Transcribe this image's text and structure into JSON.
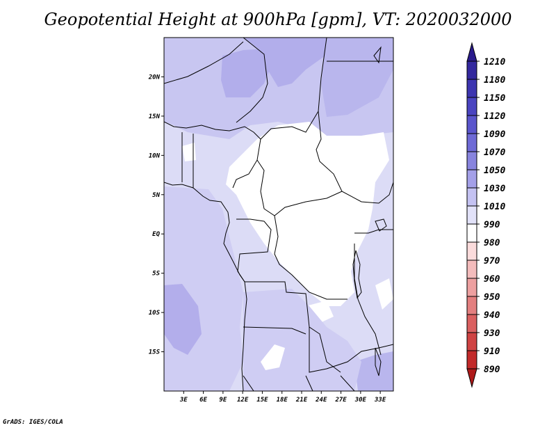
{
  "title": "Geopotential Height at 900hPa [gpm], VT: 2020032000",
  "footer": "GrADS: IGES/COLA",
  "map": {
    "lat_range": [
      -20,
      25
    ],
    "lon_range": [
      0,
      35
    ],
    "lat_labels": [
      "20N",
      "15N",
      "10N",
      "5N",
      "EQ",
      "5S",
      "10S",
      "15S"
    ],
    "lat_values": [
      20,
      15,
      10,
      5,
      0,
      -5,
      -10,
      -15
    ],
    "lon_labels": [
      "3E",
      "6E",
      "9E",
      "12E",
      "15E",
      "18E",
      "21E",
      "24E",
      "27E",
      "30E",
      "33E"
    ],
    "lon_values": [
      3,
      6,
      9,
      12,
      15,
      18,
      21,
      24,
      27,
      30,
      33
    ]
  },
  "colorbar": {
    "labels": [
      "1210",
      "1180",
      "1150",
      "1120",
      "1090",
      "1070",
      "1050",
      "1030",
      "1010",
      "990",
      "980",
      "970",
      "960",
      "950",
      "940",
      "930",
      "910",
      "890"
    ],
    "colors": [
      "#2a1b8c",
      "#33289e",
      "#3d35b0",
      "#4a44c0",
      "#5a55cc",
      "#6e6ad6",
      "#8884de",
      "#a4a0e8",
      "#c4c2f2",
      "#e2e2f9",
      "#ffffff",
      "#fbdcdc",
      "#f4bcbc",
      "#eda0a0",
      "#e37f7f",
      "#da6060",
      "#cf4343",
      "#c22a2a",
      "#ae1a1a"
    ],
    "top_color": "#2a1b8c",
    "bottom_color": "#ae1a1a"
  }
}
